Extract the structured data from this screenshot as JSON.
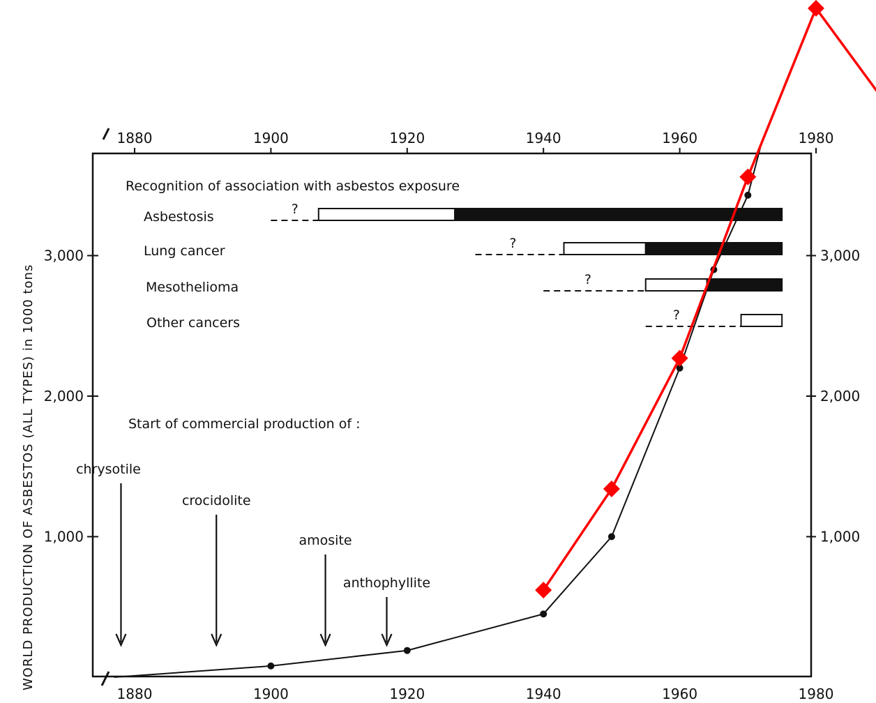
{
  "chart_data": {
    "type": "line",
    "title": "",
    "ylabel": "WORLD PRODUCTION OF ASBESTOS (ALL TYPES) in 1000 tons",
    "xlabel": "",
    "xlim": [
      1875,
      1980
    ],
    "ylim": [
      0,
      3800
    ],
    "x_ticks": [
      "1880",
      "1900",
      "1920",
      "1940",
      "1960",
      "1980"
    ],
    "x_tick_values": [
      1880,
      1900,
      1920,
      1940,
      1960,
      1980
    ],
    "y_ticks_left": [
      "1,000",
      "2,000",
      "3,000"
    ],
    "y_ticks_right": [
      "1,000",
      "2,000",
      "3,000"
    ],
    "y_tick_values": [
      1000,
      2000,
      3000
    ],
    "grid": false,
    "legend": "none",
    "series": [
      {
        "color": "#111111",
        "marker": "circle",
        "x": [
          1877,
          1900,
          1920,
          1940,
          1950,
          1960,
          1965,
          1970,
          1972
        ],
        "y": [
          0,
          80,
          190,
          450,
          1000,
          2200,
          2900,
          3430,
          3800
        ]
      },
      {
        "color": "#ff0000",
        "marker": "diamond",
        "x": [
          1940,
          1950,
          1960,
          1970,
          1980,
          1990
        ],
        "y": [
          620,
          1340,
          2270,
          3560,
          4760,
          4100
        ]
      }
    ]
  },
  "recognition": {
    "heading": "Recognition of association with asbestos exposure",
    "question_mark": "?",
    "rows": [
      {
        "label": "Asbestosis",
        "dash_from": 1900,
        "open_from": 1907,
        "solid_from": 1927,
        "end": 1975
      },
      {
        "label": "Lung cancer",
        "dash_from": 1930,
        "open_from": 1943,
        "solid_from": 1955,
        "end": 1975
      },
      {
        "label": "Mesothelioma",
        "dash_from": 1940,
        "open_from": 1955,
        "solid_from": 1964,
        "end": 1975
      },
      {
        "label": "Other cancers",
        "dash_from": 1955,
        "open_from": 1969,
        "solid_from": 1975,
        "end": 1975
      }
    ]
  },
  "production_start": {
    "heading": "Start of commercial production of :",
    "fibers": [
      {
        "label": "chrysotile",
        "year": 1878
      },
      {
        "label": "crocidolite",
        "year": 1892
      },
      {
        "label": "amosite",
        "year": 1908
      },
      {
        "label": "anthophyllite",
        "year": 1917
      }
    ]
  }
}
